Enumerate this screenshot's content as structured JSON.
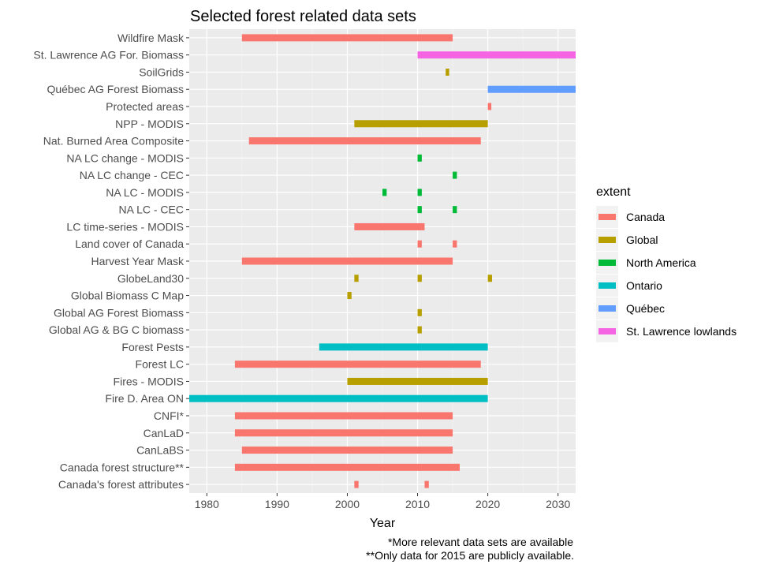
{
  "chart_data": {
    "type": "bar",
    "orientation": "horizontal-range",
    "title": "Selected forest related data sets",
    "xlabel": "Year",
    "ylabel": "",
    "xlim": [
      1977.5,
      2032.5
    ],
    "xticks": [
      1980,
      1990,
      2000,
      2010,
      2020,
      2030
    ],
    "grid": true,
    "legend": {
      "title": "extent",
      "position": "right",
      "entries": [
        {
          "name": "Canada",
          "color": "#F8766D"
        },
        {
          "name": "Global",
          "color": "#B79F00"
        },
        {
          "name": "North America",
          "color": "#00BA38"
        },
        {
          "name": "Ontario",
          "color": "#00BFC4"
        },
        {
          "name": "Québec",
          "color": "#619CFF"
        },
        {
          "name": "St. Lawrence lowlands",
          "color": "#F564E3"
        }
      ]
    },
    "categories": [
      "Wildfire Mask",
      "St. Lawrence AG For. Biomass",
      "SoilGrids",
      "Québec AG Forest Biomass",
      "Protected areas",
      "NPP - MODIS",
      "Nat. Burned Area Composite",
      "NA LC change - MODIS",
      "NA LC change - CEC",
      "NA LC - MODIS",
      "NA LC - CEC",
      "LC time-series - MODIS",
      "Land cover of Canada",
      "Harvest Year Mask",
      "GlobeLand30",
      "Global Biomass C Map",
      "Global AG Forest Biomass",
      "Global AG & BG C biomass",
      "Forest Pests",
      "Forest LC",
      "Fires - MODIS",
      "Fire D. Area ON",
      "CNFI*",
      "CanLaD",
      "CanLaBS",
      "Canada forest structure**",
      "Canada's forest attributes"
    ],
    "bars": [
      {
        "category": "Wildfire Mask",
        "extent": "Canada",
        "start": 1985,
        "end": 2015
      },
      {
        "category": "St. Lawrence AG For. Biomass",
        "extent": "St. Lawrence lowlands",
        "start": 2010,
        "end": 2035
      },
      {
        "category": "SoilGrids",
        "extent": "Global",
        "start": 2014,
        "end": 2014.5
      },
      {
        "category": "Québec AG Forest Biomass",
        "extent": "Québec",
        "start": 2020,
        "end": 2035
      },
      {
        "category": "Protected areas",
        "extent": "Canada",
        "start": 2020,
        "end": 2020.5
      },
      {
        "category": "NPP - MODIS",
        "extent": "Global",
        "start": 2001,
        "end": 2020
      },
      {
        "category": "Nat. Burned Area Composite",
        "extent": "Canada",
        "start": 1986,
        "end": 2019
      },
      {
        "category": "NA LC change - MODIS",
        "extent": "North America",
        "start": 2010,
        "end": 2010.6
      },
      {
        "category": "NA LC change - CEC",
        "extent": "North America",
        "start": 2015,
        "end": 2015.6
      },
      {
        "category": "NA LC - MODIS",
        "extent": "North America",
        "start": 2005,
        "end": 2005.6
      },
      {
        "category": "NA LC - MODIS",
        "extent": "North America",
        "start": 2010,
        "end": 2010.6
      },
      {
        "category": "NA LC - CEC",
        "extent": "North America",
        "start": 2010,
        "end": 2010.6
      },
      {
        "category": "NA LC - CEC",
        "extent": "North America",
        "start": 2015,
        "end": 2015.6
      },
      {
        "category": "LC time-series - MODIS",
        "extent": "Canada",
        "start": 2001,
        "end": 2011
      },
      {
        "category": "Land cover of Canada",
        "extent": "Canada",
        "start": 2010,
        "end": 2010.6
      },
      {
        "category": "Land cover of Canada",
        "extent": "Canada",
        "start": 2015,
        "end": 2015.6
      },
      {
        "category": "Harvest Year Mask",
        "extent": "Canada",
        "start": 1985,
        "end": 2015
      },
      {
        "category": "GlobeLand30",
        "extent": "Global",
        "start": 2001,
        "end": 2001.6
      },
      {
        "category": "GlobeLand30",
        "extent": "Global",
        "start": 2010,
        "end": 2010.6
      },
      {
        "category": "GlobeLand30",
        "extent": "Global",
        "start": 2020,
        "end": 2020.6
      },
      {
        "category": "Global Biomass C Map",
        "extent": "Global",
        "start": 2000,
        "end": 2000.6
      },
      {
        "category": "Global AG Forest Biomass",
        "extent": "Global",
        "start": 2010,
        "end": 2010.6
      },
      {
        "category": "Global AG & BG C biomass",
        "extent": "Global",
        "start": 2010,
        "end": 2010.6
      },
      {
        "category": "Forest Pests",
        "extent": "Ontario",
        "start": 1996,
        "end": 2020
      },
      {
        "category": "Forest LC",
        "extent": "Canada",
        "start": 1984,
        "end": 2019
      },
      {
        "category": "Fires - MODIS",
        "extent": "Global",
        "start": 2000,
        "end": 2020
      },
      {
        "category": "Fire D. Area ON",
        "extent": "Ontario",
        "start": 1977,
        "end": 2020
      },
      {
        "category": "CNFI*",
        "extent": "Canada",
        "start": 1984,
        "end": 2015
      },
      {
        "category": "CanLaD",
        "extent": "Canada",
        "start": 1984,
        "end": 2015
      },
      {
        "category": "CanLaBS",
        "extent": "Canada",
        "start": 1985,
        "end": 2015
      },
      {
        "category": "Canada forest structure**",
        "extent": "Canada",
        "start": 1984,
        "end": 2016
      },
      {
        "category": "Canada's forest attributes",
        "extent": "Canada",
        "start": 2001,
        "end": 2001.6
      },
      {
        "category": "Canada's forest attributes",
        "extent": "Canada",
        "start": 2011,
        "end": 2011.6
      }
    ],
    "annotations": [
      "*More relevant data sets are available",
      "**Only data for 2015 are publicly available."
    ]
  }
}
